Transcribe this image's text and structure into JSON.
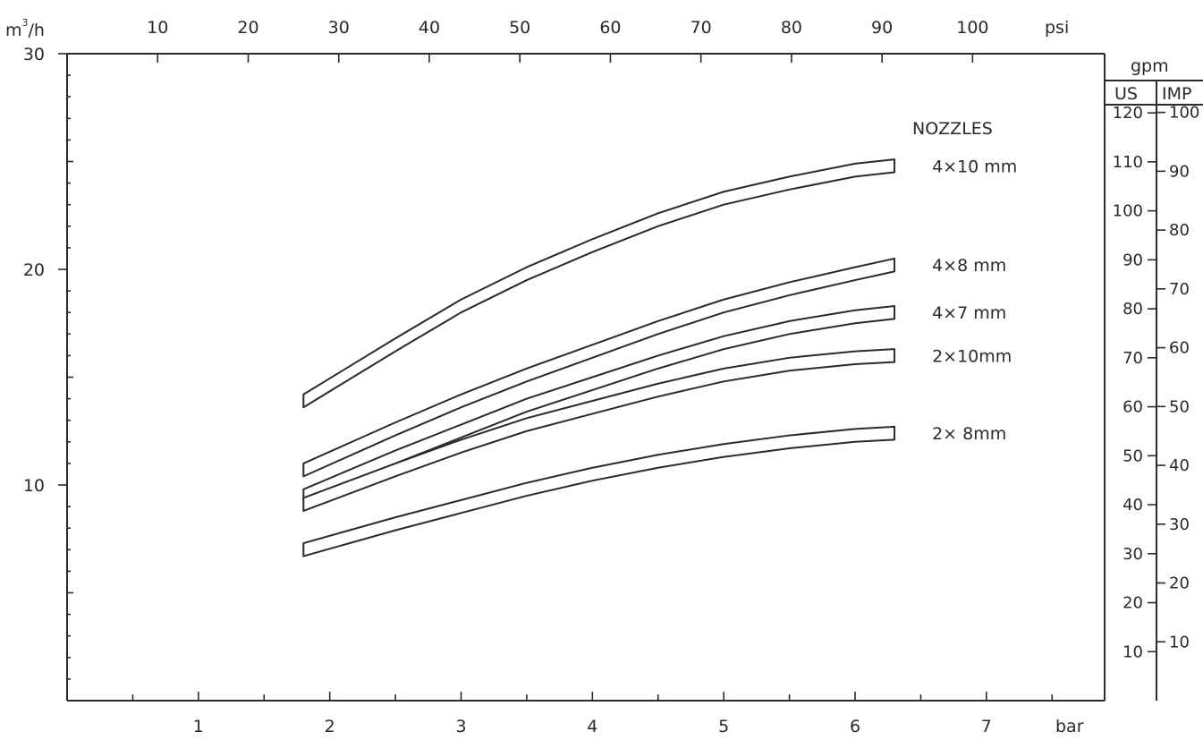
{
  "chart_data": {
    "type": "line",
    "x_unit": "bar",
    "x_secondary_unit": "psi",
    "y_unit_base": "m",
    "y_unit_sup": "3",
    "y_unit_rest": "/h",
    "xlim": [
      0,
      7.9
    ],
    "ylim": [
      0,
      30
    ],
    "x_ticks": [
      1,
      2,
      3,
      4,
      5,
      6,
      7
    ],
    "y_ticks": [
      10,
      20,
      30
    ],
    "psi_ticks": [
      10,
      20,
      30,
      40,
      50,
      60,
      70,
      80,
      90,
      100
    ],
    "legend_title": "NOZZLES",
    "series": [
      {
        "name": "4×10 mm",
        "x": [
          1.8,
          2.5,
          3.0,
          3.5,
          4.0,
          4.5,
          5.0,
          5.5,
          6.0,
          6.3
        ],
        "y": [
          13.9,
          16.5,
          18.3,
          19.8,
          21.1,
          22.3,
          23.3,
          24.0,
          24.6,
          24.8
        ]
      },
      {
        "name": "4×8 mm",
        "x": [
          1.8,
          2.5,
          3.0,
          3.5,
          4.0,
          4.5,
          5.0,
          5.5,
          6.0,
          6.3
        ],
        "y": [
          10.7,
          12.6,
          13.9,
          15.1,
          16.2,
          17.3,
          18.3,
          19.1,
          19.8,
          20.2
        ]
      },
      {
        "name": "4×7 mm",
        "x": [
          1.8,
          2.5,
          3.0,
          3.5,
          4.0,
          4.5,
          5.0,
          5.5,
          6.0,
          6.3
        ],
        "y": [
          9.5,
          11.3,
          12.5,
          13.7,
          14.7,
          15.7,
          16.6,
          17.3,
          17.8,
          18.0
        ]
      },
      {
        "name": "2×10mm",
        "x": [
          1.8,
          2.5,
          3.0,
          3.5,
          4.0,
          4.5,
          5.0,
          5.5,
          6.0,
          6.3
        ],
        "y": [
          9.1,
          10.7,
          11.8,
          12.8,
          13.6,
          14.4,
          15.1,
          15.6,
          15.9,
          16.0
        ]
      },
      {
        "name": "2× 8mm",
        "x": [
          1.8,
          2.5,
          3.0,
          3.5,
          4.0,
          4.5,
          5.0,
          5.5,
          6.0,
          6.3
        ],
        "y": [
          7.0,
          8.2,
          9.0,
          9.8,
          10.5,
          11.1,
          11.6,
          12.0,
          12.3,
          12.4
        ]
      }
    ],
    "gpm_panel": {
      "header": "gpm",
      "us_label": "US",
      "imp_label": "IMP",
      "us_ticks": [
        10,
        20,
        30,
        40,
        50,
        60,
        70,
        80,
        90,
        100,
        110,
        120
      ],
      "imp_ticks": [
        10,
        20,
        30,
        40,
        50,
        60,
        70,
        80,
        90,
        100
      ]
    }
  }
}
